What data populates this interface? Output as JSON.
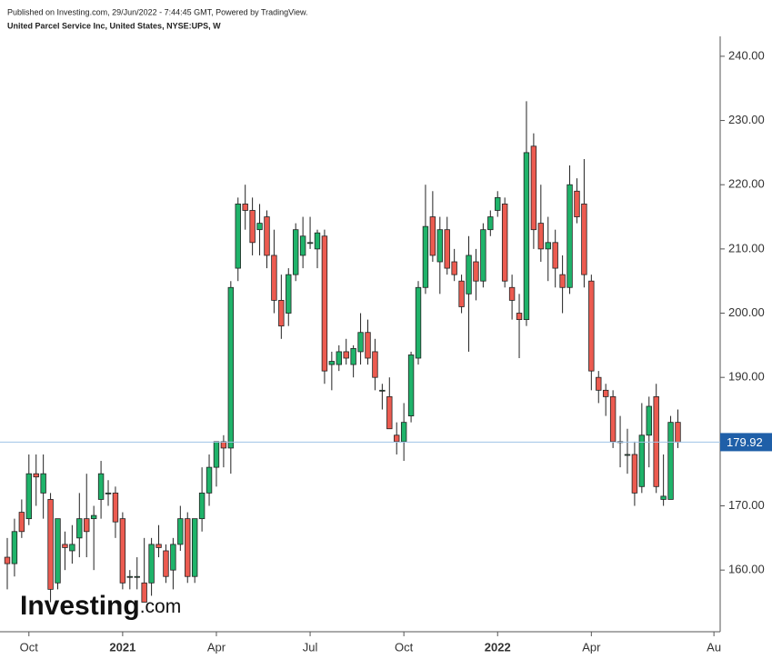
{
  "header": {
    "published": "Published on Investing.com, 29/Jun/2022 - 7:44:45 GMT, Powered by TradingView.",
    "symbol": "United Parcel Service Inc, United States, NYSE:UPS, W"
  },
  "logo": {
    "name": "Investing",
    "suffix": ".com"
  },
  "chart_data": {
    "type": "candlestick",
    "categories": [
      null,
      null,
      null,
      "Oct",
      null,
      null,
      null,
      null,
      null,
      null,
      null,
      null,
      null,
      null,
      null,
      null,
      "2021",
      null,
      null,
      null,
      null,
      null,
      null,
      null,
      null,
      null,
      null,
      null,
      null,
      "Apr",
      null,
      null,
      null,
      null,
      null,
      null,
      null,
      null,
      null,
      null,
      null,
      null,
      "Jul",
      null,
      null,
      null,
      null,
      null,
      null,
      null,
      null,
      null,
      null,
      null,
      null,
      "Oct",
      null,
      null,
      null,
      null,
      null,
      null,
      null,
      null,
      null,
      null,
      null,
      null,
      "2022",
      null,
      null,
      null,
      null,
      null,
      null,
      null,
      null,
      null,
      null,
      null,
      null,
      "Apr",
      null,
      null,
      null,
      null,
      null,
      null,
      null,
      null,
      null,
      null,
      null,
      null,
      null,
      null,
      null,
      null,
      "Au"
    ],
    "open": [
      162,
      161,
      169,
      168,
      175,
      172,
      171,
      158,
      164,
      163,
      165,
      168,
      168,
      171,
      172,
      172,
      168,
      159,
      159,
      158,
      158,
      164,
      163,
      160,
      164,
      168,
      159,
      168,
      172,
      176,
      180,
      179,
      207,
      217,
      216,
      213,
      215,
      209,
      202,
      200,
      206,
      209,
      211,
      210,
      212,
      192,
      192,
      194,
      192,
      194,
      197,
      194,
      188,
      187,
      181,
      180,
      184,
      193,
      204,
      215,
      208,
      213,
      208,
      205,
      203,
      208,
      205,
      213,
      216,
      217,
      204,
      200,
      199,
      226,
      214,
      210,
      211,
      206,
      204,
      219,
      217,
      205,
      190,
      188,
      187,
      180,
      178,
      178,
      173,
      181,
      187,
      171,
      171,
      183,
      null,
      null,
      null,
      null,
      null
    ],
    "high": [
      165,
      168,
      171,
      178,
      178,
      178,
      172,
      168,
      166,
      167,
      172,
      175,
      170,
      177,
      174,
      173,
      169,
      160,
      162,
      165,
      165,
      167,
      164,
      165,
      170,
      169,
      168,
      176,
      178,
      180,
      181,
      205,
      218,
      220,
      218,
      217,
      216,
      213,
      206,
      207,
      214,
      215,
      215,
      213,
      213,
      194,
      195,
      196,
      195,
      200,
      199,
      196,
      189,
      190,
      183,
      186,
      194,
      205,
      220,
      219,
      215,
      215,
      210,
      206,
      212,
      210,
      214,
      216,
      219,
      218,
      206,
      203,
      233,
      228,
      220,
      215,
      213,
      209,
      223,
      221,
      224,
      206,
      191,
      189,
      188,
      184,
      182,
      180,
      186,
      187,
      189,
      178,
      184,
      185,
      null,
      null,
      null,
      null,
      null
    ],
    "low": [
      157,
      159,
      165,
      167,
      170,
      168,
      155,
      157,
      160,
      161,
      162,
      162,
      160,
      168,
      170,
      165,
      157,
      157,
      157,
      155,
      156,
      162,
      158,
      157,
      163,
      158,
      158,
      166,
      170,
      173,
      176,
      175,
      205,
      213,
      209,
      209,
      207,
      200,
      196,
      198,
      205,
      207,
      210,
      207,
      189,
      188,
      191,
      192,
      190,
      192,
      192,
      188,
      185,
      182,
      178,
      177,
      183,
      192,
      203,
      208,
      203,
      206,
      205,
      200,
      194,
      202,
      204,
      212,
      215,
      204,
      199,
      193,
      198,
      210,
      208,
      205,
      204,
      200,
      203,
      214,
      204,
      188,
      186,
      184,
      179,
      176,
      175,
      170,
      172,
      176,
      172,
      170,
      171,
      179,
      null,
      null,
      null,
      null,
      null
    ],
    "close": [
      161,
      166,
      166,
      175,
      174.5,
      175,
      157,
      168,
      163.5,
      164,
      168,
      166,
      168.5,
      175,
      172,
      167.5,
      158,
      159,
      159,
      155,
      164,
      163.5,
      159,
      164,
      168,
      159,
      168,
      172,
      176,
      180,
      179,
      204,
      217,
      216,
      211,
      214,
      209,
      202,
      198,
      206,
      213,
      212,
      211,
      212.5,
      191,
      192.5,
      194,
      193,
      194.5,
      197,
      193,
      190,
      188,
      182,
      180,
      183,
      193.5,
      204,
      213.5,
      209,
      213,
      207,
      206,
      201,
      209,
      205,
      213,
      215,
      218,
      205,
      202,
      199,
      225,
      213,
      210,
      211,
      207,
      204,
      220,
      215,
      206,
      191,
      188,
      187,
      180,
      180,
      178,
      172,
      181,
      185.5,
      173,
      171.5,
      183,
      179.92,
      null,
      null,
      null,
      null,
      null
    ],
    "up_color": "#1fb36a",
    "down_color": "#ec5b50",
    "last_price": 179.92,
    "ylim": [
      150.4,
      243.1
    ],
    "yticks": [
      {
        "value": 160,
        "label": "160.00"
      },
      {
        "value": 170,
        "label": "170.00"
      },
      {
        "value": 180,
        "label": "180.00"
      },
      {
        "value": 190,
        "label": "190.00"
      },
      {
        "value": 200,
        "label": "200.00"
      },
      {
        "value": 210,
        "label": "210.00"
      },
      {
        "value": 220,
        "label": "220.00"
      },
      {
        "value": 230,
        "label": "230.00"
      },
      {
        "value": 240,
        "label": "240.00"
      }
    ]
  }
}
